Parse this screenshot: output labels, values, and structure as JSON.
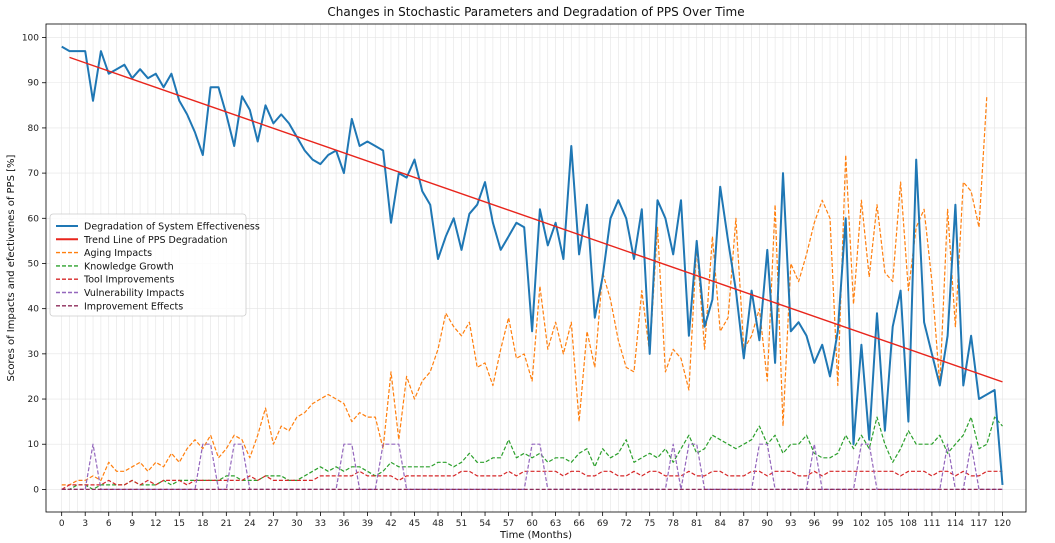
{
  "chart_data": {
    "type": "line",
    "title": "Changes in Stochastic Parameters and Degradation of PPS Over Time",
    "xlabel": "Time (Months)",
    "ylabel": "Scores of Impacts and efectivenes of PPS [%]",
    "xlim": [
      -2,
      123
    ],
    "ylim": [
      -5,
      103
    ],
    "xticks": [
      0,
      3,
      6,
      9,
      12,
      15,
      18,
      21,
      24,
      27,
      30,
      33,
      36,
      39,
      42,
      45,
      48,
      51,
      54,
      57,
      60,
      63,
      66,
      69,
      72,
      75,
      78,
      81,
      84,
      87,
      90,
      93,
      96,
      99,
      102,
      105,
      108,
      111,
      114,
      117,
      120
    ],
    "yticks": [
      0,
      10,
      20,
      30,
      40,
      50,
      60,
      70,
      80,
      90,
      100
    ],
    "grid": true,
    "legend_position": "center-left",
    "series": [
      {
        "name": "Degradation of System Effectiveness",
        "color": "#1f77b4",
        "style": "solid",
        "y": [
          98,
          97,
          97,
          97,
          86,
          97,
          92,
          93,
          94,
          91,
          93,
          91,
          92,
          89,
          92,
          86,
          83,
          79,
          74,
          89,
          89,
          83,
          76,
          87,
          84,
          77,
          85,
          81,
          83,
          81,
          78,
          75,
          73,
          72,
          74,
          75,
          70,
          82,
          76,
          77,
          76,
          75,
          59,
          70,
          69,
          73,
          66,
          63,
          51,
          56,
          60,
          53,
          61,
          63,
          68,
          59,
          53,
          56,
          59,
          58,
          35,
          62,
          54,
          59,
          51,
          76,
          52,
          63,
          38,
          47,
          60,
          64,
          60,
          51,
          62,
          30,
          64,
          60,
          52,
          64,
          34,
          55,
          36,
          42,
          67,
          55,
          44,
          29,
          44,
          33,
          53,
          28,
          70,
          35,
          37,
          34,
          28,
          32,
          25,
          35,
          60,
          10,
          32,
          11,
          39,
          13,
          36,
          44,
          15,
          73,
          37,
          30,
          23,
          34,
          63,
          23,
          34,
          20,
          21,
          22,
          1
        ]
      },
      {
        "name": "Trend Line of PPS Degradation",
        "color": "#e8251c",
        "style": "solid",
        "x": [
          1,
          120
        ],
        "y": [
          95.6,
          23.8
        ]
      },
      {
        "name": "Aging Impacts",
        "color": "#ff7f0e",
        "style": "dashed",
        "y": [
          1,
          1,
          2,
          2,
          3,
          2,
          6,
          4,
          4,
          5,
          6,
          4,
          6,
          5,
          8,
          6,
          9,
          11,
          9,
          12,
          7,
          9,
          12,
          11,
          7,
          12,
          18,
          10,
          14,
          13,
          16,
          17,
          19,
          20,
          21,
          20,
          19,
          15,
          17,
          16,
          16,
          9,
          26,
          11,
          25,
          20,
          24,
          26,
          31,
          39,
          36,
          34,
          37,
          27,
          28,
          23,
          31,
          38,
          29,
          30,
          24,
          45,
          31,
          37,
          30,
          37,
          15,
          35,
          27,
          48,
          42,
          33,
          27,
          26,
          44,
          30,
          58,
          26,
          31,
          29,
          22,
          54,
          31,
          56,
          35,
          38,
          60,
          31,
          34,
          40,
          24,
          63,
          14,
          50,
          46,
          52,
          59,
          64,
          60,
          23,
          74,
          41,
          64,
          47,
          63,
          48,
          46,
          68,
          44,
          58,
          62,
          46,
          23,
          62,
          36,
          68,
          66,
          58,
          87
        ]
      },
      {
        "name": "Knowledge Growth",
        "color": "#2ca02c",
        "style": "dashed",
        "y": [
          0,
          0,
          1,
          1,
          0,
          1,
          1,
          1,
          1,
          2,
          1,
          1,
          1,
          2,
          1,
          2,
          2,
          2,
          2,
          2,
          2,
          3,
          3,
          2,
          2,
          2,
          3,
          3,
          3,
          2,
          2,
          3,
          4,
          5,
          4,
          5,
          4,
          5,
          5,
          4,
          3,
          4,
          6,
          5,
          5,
          5,
          5,
          5,
          6,
          6,
          5,
          6,
          8,
          6,
          6,
          7,
          7,
          11,
          7,
          8,
          7,
          8,
          6,
          7,
          7,
          6,
          8,
          9,
          5,
          9,
          7,
          8,
          11,
          6,
          7,
          8,
          7,
          9,
          6,
          9,
          12,
          8,
          9,
          12,
          11,
          10,
          9,
          10,
          11,
          14,
          10,
          12,
          8,
          10,
          10,
          12,
          8,
          7,
          7,
          8,
          12,
          9,
          12,
          9,
          16,
          10,
          6,
          9,
          13,
          10,
          10,
          10,
          12,
          8,
          10,
          12,
          16,
          9,
          10,
          16,
          14
        ]
      },
      {
        "name": "Tool Improvements",
        "color": "#d62728",
        "style": "dashed",
        "y": [
          0,
          1,
          1,
          1,
          1,
          1,
          2,
          1,
          1,
          2,
          1,
          2,
          1,
          2,
          2,
          2,
          1,
          2,
          2,
          2,
          2,
          2,
          2,
          2,
          3,
          2,
          3,
          2,
          2,
          2,
          2,
          2,
          2,
          3,
          3,
          3,
          3,
          3,
          4,
          3,
          3,
          3,
          3,
          2,
          3,
          3,
          3,
          3,
          3,
          3,
          3,
          4,
          4,
          3,
          3,
          3,
          3,
          4,
          3,
          4,
          4,
          4,
          4,
          4,
          3,
          4,
          4,
          3,
          3,
          4,
          4,
          3,
          3,
          4,
          3,
          4,
          4,
          3,
          3,
          3,
          4,
          3,
          3,
          4,
          4,
          3,
          3,
          3,
          4,
          4,
          3,
          4,
          4,
          4,
          3,
          3,
          4,
          3,
          4,
          4,
          4,
          4,
          4,
          4,
          4,
          4,
          4,
          3,
          4,
          4,
          4,
          3,
          4,
          4,
          3,
          4,
          3,
          3,
          4,
          4,
          4
        ]
      },
      {
        "name": "Vulnerability Impacts",
        "color": "#9467bd",
        "style": "dashed",
        "y": [
          0,
          0,
          0,
          0,
          10,
          0,
          0,
          0,
          0,
          0,
          0,
          0,
          0,
          0,
          0,
          0,
          0,
          0,
          10,
          10,
          0,
          0,
          10,
          10,
          0,
          0,
          0,
          0,
          0,
          0,
          0,
          0,
          0,
          0,
          0,
          0,
          10,
          10,
          0,
          0,
          0,
          10,
          10,
          10,
          0,
          0,
          0,
          0,
          0,
          0,
          0,
          0,
          0,
          0,
          0,
          0,
          0,
          0,
          0,
          0,
          10,
          10,
          0,
          0,
          0,
          0,
          0,
          0,
          0,
          0,
          0,
          0,
          0,
          0,
          0,
          0,
          0,
          0,
          10,
          0,
          10,
          10,
          0,
          0,
          0,
          0,
          0,
          0,
          0,
          10,
          10,
          0,
          0,
          0,
          0,
          0,
          10,
          0,
          0,
          0,
          0,
          0,
          10,
          10,
          0,
          0,
          0,
          0,
          0,
          0,
          0,
          0,
          0,
          10,
          0,
          0,
          10,
          0,
          0,
          0,
          0
        ]
      },
      {
        "name": "Improvement Effects",
        "color": "#8c2b59",
        "style": "dashed",
        "y": [
          0,
          0,
          0,
          0,
          0,
          0,
          0,
          0,
          0,
          0,
          0,
          0,
          0,
          0,
          0,
          0,
          0,
          0,
          0,
          0,
          0,
          0,
          0,
          0,
          0,
          0,
          0,
          0,
          0,
          0,
          0,
          0,
          0,
          0,
          0,
          0,
          0,
          0,
          0,
          0,
          0,
          0,
          0,
          0,
          0,
          0,
          0,
          0,
          0,
          0,
          0,
          0,
          0,
          0,
          0,
          0,
          0,
          0,
          0,
          0,
          0,
          0,
          0,
          0,
          0,
          0,
          0,
          0,
          0,
          0,
          0,
          0,
          0,
          0,
          0,
          0,
          0,
          0,
          0,
          0,
          0,
          0,
          0,
          0,
          0,
          0,
          0,
          0,
          0,
          0,
          0,
          0,
          0,
          0,
          0,
          0,
          0,
          0,
          0,
          0,
          0,
          0,
          0,
          0,
          0,
          0,
          0,
          0,
          0,
          0,
          0,
          0,
          0,
          0,
          0,
          0,
          0,
          0,
          0,
          0,
          0
        ]
      }
    ]
  }
}
